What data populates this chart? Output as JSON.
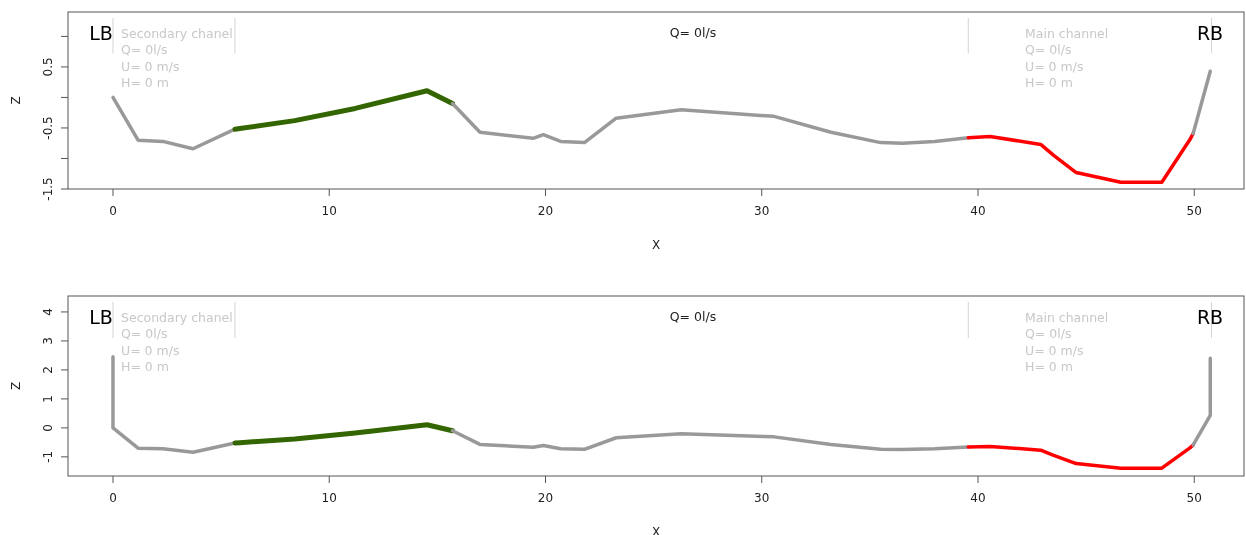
{
  "chart_data": [
    {
      "type": "line",
      "xlabel": "X",
      "ylabel": "Z",
      "xlim": [
        -2.08,
        52.3
      ],
      "ylim": [
        -1.5,
        1.4
      ],
      "xticks": [
        0,
        10,
        20,
        30,
        40,
        50
      ],
      "yticks": [
        {
          "value": 1,
          "label": null
        },
        0.5,
        {
          "value": 0,
          "label": null
        },
        -0.5,
        {
          "value": -1,
          "label": null
        },
        -1.5
      ],
      "series": [
        {
          "color": "#999999",
          "x": [
            0,
            1.16,
            2.31,
            3.7,
            5.64
          ],
          "values": [
            0,
            -0.7,
            -0.72,
            -0.84,
            -0.52
          ]
        },
        {
          "color": "#336600",
          "x": [
            5.64,
            5.87,
            8.4,
            11.2,
            14.52,
            15.7
          ],
          "values": [
            -0.52,
            -0.51,
            -0.38,
            -0.18,
            0.11,
            -0.1
          ]
        },
        {
          "color": "#999999",
          "x": [
            15.7,
            16.97,
            19.43,
            19.9,
            20.7,
            21.8,
            23.27,
            26.27,
            30.57,
            33.2,
            35.5,
            36.5,
            38.0,
            39.55
          ],
          "values": [
            -0.1,
            -0.57,
            -0.67,
            -0.61,
            -0.72,
            -0.74,
            -0.34,
            -0.2,
            -0.31,
            -0.57,
            -0.74,
            -0.75,
            -0.72,
            -0.66
          ]
        },
        {
          "color": "#ff0000",
          "x": [
            39.55,
            40.56,
            42.9,
            43.5,
            44.54,
            46.6,
            48.5,
            49.8,
            49.95
          ],
          "values": [
            -0.66,
            -0.64,
            -0.77,
            -0.95,
            -1.23,
            -1.39,
            -1.39,
            -0.69,
            -0.59
          ]
        },
        {
          "color": "#999999",
          "x": [
            49.95,
            50.74
          ],
          "values": [
            -0.59,
            0.43
          ]
        }
      ],
      "ref_lines": [
        {
          "axis": "x",
          "value": 0,
          "color": "#d3d3d3"
        },
        {
          "axis": "x",
          "value": 5.64,
          "color": "#d3d3d3"
        },
        {
          "axis": "x",
          "value": 39.55,
          "color": "#d3d3d3"
        },
        {
          "axis": "x",
          "value": 50.8,
          "color": "#d3d3d3"
        }
      ],
      "annotations": [
        "LB",
        "Secondary chanel\nQ= 0l/s\nU= 0 m/s\nH= 0 m",
        "Q= 0l/s",
        "Main channel\nQ= 0l/s\nU= 0 m/s\nH= 0 m",
        "RB"
      ]
    },
    {
      "type": "line",
      "xlabel": "X",
      "ylabel": "Z",
      "xlim": [
        -2.08,
        52.3
      ],
      "ylim": [
        -1.66,
        4.55
      ],
      "xticks": [
        0,
        10,
        20,
        30,
        40,
        50
      ],
      "yticks": [
        -1,
        0,
        1,
        2,
        3,
        4
      ],
      "series": [
        {
          "color": "#999999",
          "x": [
            0,
            0,
            1.16,
            2.31,
            3.7,
            5.64
          ],
          "values": [
            2.45,
            0,
            -0.7,
            -0.72,
            -0.84,
            -0.52
          ]
        },
        {
          "color": "#336600",
          "x": [
            5.64,
            5.87,
            8.4,
            11.2,
            14.52,
            15.7
          ],
          "values": [
            -0.52,
            -0.51,
            -0.38,
            -0.18,
            0.11,
            -0.1
          ]
        },
        {
          "color": "#999999",
          "x": [
            15.7,
            16.97,
            19.43,
            19.9,
            20.7,
            21.8,
            23.27,
            26.27,
            30.57,
            33.2,
            35.5,
            36.5,
            38.0,
            39.55
          ],
          "values": [
            -0.1,
            -0.57,
            -0.67,
            -0.61,
            -0.72,
            -0.74,
            -0.34,
            -0.2,
            -0.31,
            -0.57,
            -0.74,
            -0.75,
            -0.72,
            -0.66
          ]
        },
        {
          "color": "#ff0000",
          "x": [
            39.55,
            40.56,
            42.9,
            43.5,
            44.54,
            46.6,
            48.5,
            49.8,
            49.95
          ],
          "values": [
            -0.66,
            -0.64,
            -0.77,
            -0.95,
            -1.23,
            -1.39,
            -1.39,
            -0.69,
            -0.59
          ]
        },
        {
          "color": "#999999",
          "x": [
            49.95,
            50.74,
            50.74
          ],
          "values": [
            -0.59,
            0.43,
            2.4
          ]
        }
      ],
      "ref_lines": [
        {
          "axis": "x",
          "value": 0,
          "color": "#d3d3d3"
        },
        {
          "axis": "x",
          "value": 5.64,
          "color": "#d3d3d3"
        },
        {
          "axis": "x",
          "value": 39.55,
          "color": "#d3d3d3"
        },
        {
          "axis": "x",
          "value": 50.8,
          "color": "#d3d3d3"
        }
      ],
      "annotations": [
        "LB",
        "Secondary chanel\nQ= 0l/s\nU= 0 m/s\nH= 0 m",
        "Q= 0l/s",
        "Main channel\nQ= 0l/s\nU= 0 m/s\nH= 0 m",
        "RB"
      ]
    }
  ]
}
